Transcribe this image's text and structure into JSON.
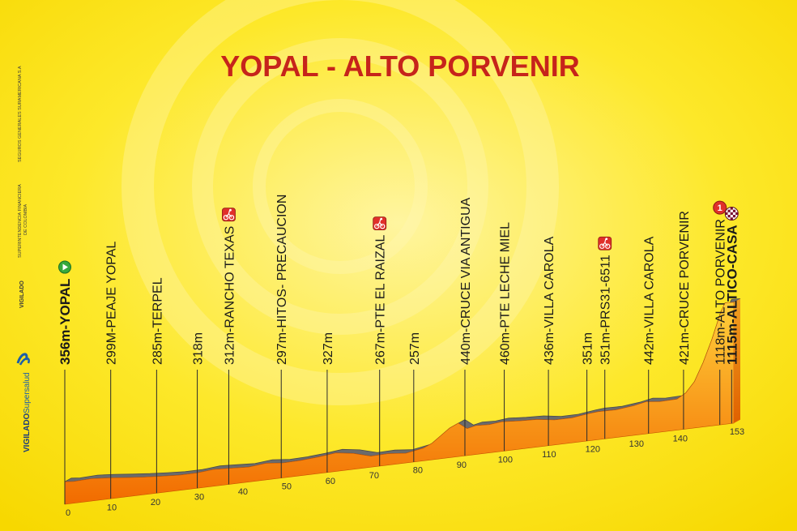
{
  "chart_data": {
    "type": "area",
    "title": "YOPAL - ALTO PORVENIR",
    "xlabel": "",
    "ylabel": "",
    "x_ticks": [
      0,
      10,
      20,
      30,
      40,
      50,
      60,
      70,
      80,
      90,
      100,
      110,
      120,
      130,
      140,
      153
    ],
    "profile": {
      "x": [
        0,
        2,
        6,
        10,
        14,
        18,
        22,
        26,
        30,
        34,
        38,
        42,
        46,
        50,
        54,
        58,
        62,
        66,
        70,
        74,
        78,
        82,
        84,
        86,
        88,
        90,
        92,
        94,
        97,
        100,
        104,
        108,
        112,
        116,
        120,
        122,
        126,
        130,
        133,
        136,
        140,
        142,
        144,
        146,
        148,
        150,
        151,
        153
      ],
      "y": [
        356,
        350,
        355,
        345,
        330,
        318,
        308,
        300,
        300,
        312,
        305,
        297,
        310,
        297,
        300,
        310,
        325,
        305,
        267,
        270,
        257,
        280,
        310,
        360,
        410,
        440,
        390,
        405,
        400,
        410,
        400,
        395,
        375,
        375,
        392,
        398,
        395,
        410,
        430,
        418,
        421,
        460,
        540,
        680,
        850,
        1050,
        1118,
        1115
      ]
    },
    "waypoints": [
      {
        "km": 0,
        "label": "356m-YOPAL",
        "marker": "start"
      },
      {
        "km": 10.5,
        "label": "299M-PEAJE YOPAL"
      },
      {
        "km": 21,
        "label": "285m-TERPEL"
      },
      {
        "km": 30.3,
        "label": "318m"
      },
      {
        "km": 37.5,
        "label": "312m-RANCHO TEXAS",
        "marker": "sprint"
      },
      {
        "km": 49.5,
        "label": "297m-HITOS- PRECAUCION"
      },
      {
        "km": 60,
        "label": "327m"
      },
      {
        "km": 72,
        "label": "267m-PTE EL RAIZAL",
        "marker": "sprint"
      },
      {
        "km": 79.8,
        "label": "257m"
      },
      {
        "km": 91.5,
        "label": "440m-CRUCE VIA ANTIGUA"
      },
      {
        "km": 100.5,
        "label": "460m-PTE LECHE MIEL"
      },
      {
        "km": 110.6,
        "label": "436m-VILLA CAROLA"
      },
      {
        "km": 119.4,
        "label": "351m"
      },
      {
        "km": 123.5,
        "label": "351m-PRS31-6511",
        "marker": "sprint"
      },
      {
        "km": 133.5,
        "label": "442m-VILLA CAROLA"
      },
      {
        "km": 141.5,
        "label": "421m-CRUCE PORVENIR"
      },
      {
        "km": 149.8,
        "label": "1118m-ALTO PORVENIR",
        "marker": "kom"
      },
      {
        "km": 152.5,
        "label": "1115m-ALTICO-CASA",
        "marker": "finish"
      }
    ],
    "kom_category": "1"
  },
  "side": {
    "line1": "SUPERINTENDENCIA FINANCIERA",
    "line1b": "DE COLOMBIA",
    "line2": "SEGUROS GENERALES SURAMERICANA S.A",
    "vigilado": "VIGILADO",
    "logo_vigilado": "VIGILADO",
    "logo_name": "Supersalud"
  },
  "colors": {
    "background": "#fde82a",
    "title": "#c6241b",
    "area_top": "#ffcf3a",
    "area_bottom": "#f26b00",
    "ridge": "#6b6b6b",
    "marker_green": "#36a93c",
    "marker_red": "#e0302a"
  }
}
